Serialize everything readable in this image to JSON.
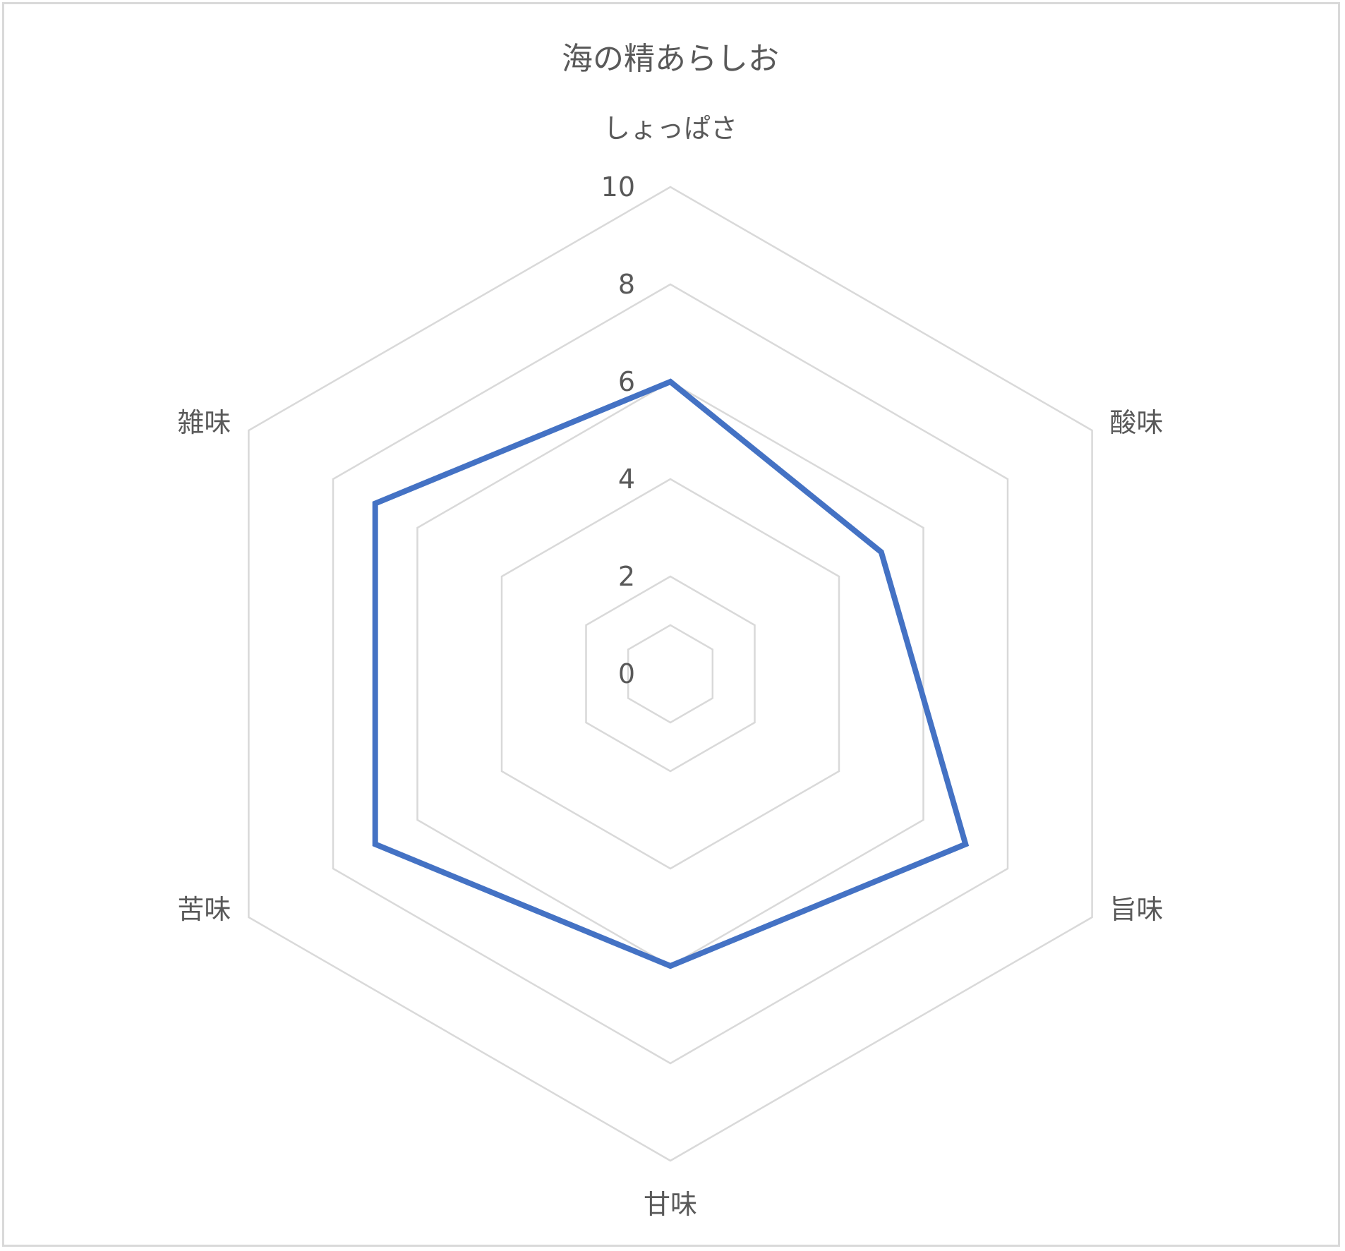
{
  "chart_data": {
    "type": "radar",
    "title": "海の精あらしお",
    "categories": [
      "しょっぱさ",
      "酸味",
      "旨味",
      "甘味",
      "苦味",
      "雑味"
    ],
    "series": [
      {
        "values": [
          6,
          5,
          7,
          6,
          7,
          7
        ],
        "color": "#4472c4"
      }
    ],
    "rlim": [
      0,
      10
    ],
    "r_ticks": [
      "0",
      "2",
      "4",
      "6",
      "8",
      "10"
    ],
    "grid": true,
    "legend": "none"
  }
}
